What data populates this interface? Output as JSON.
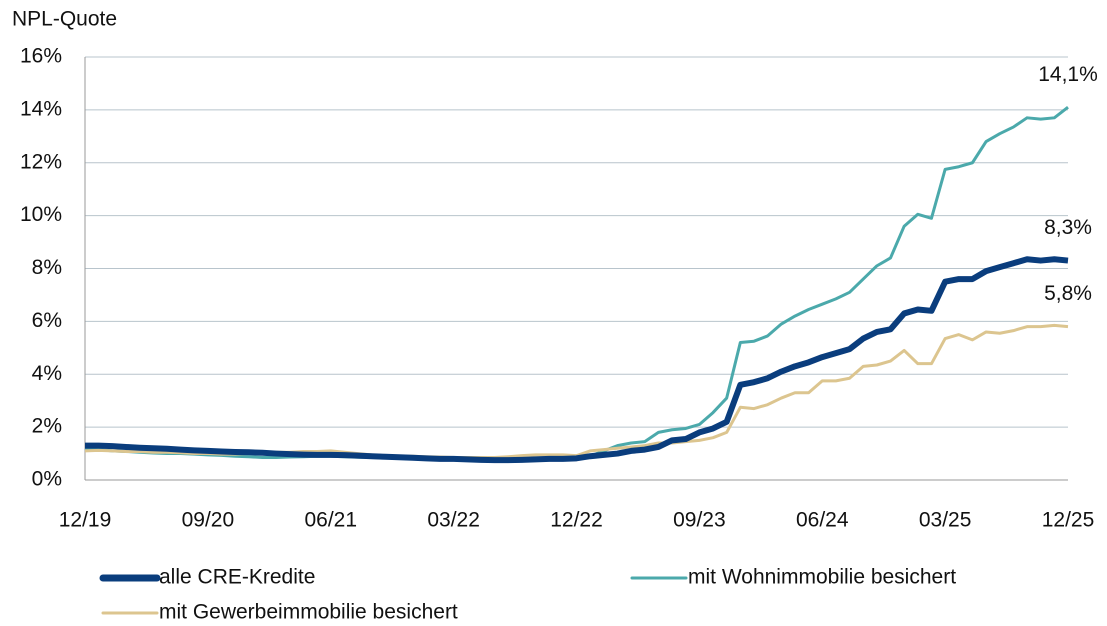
{
  "chart_data": {
    "type": "line",
    "y_axis_title": "NPL-Quote",
    "categories": [
      "12/19",
      null,
      null,
      null,
      null,
      null,
      null,
      null,
      null,
      "09/20",
      null,
      null,
      null,
      null,
      null,
      null,
      null,
      null,
      "06/21",
      null,
      null,
      null,
      null,
      null,
      null,
      null,
      null,
      "03/22",
      null,
      null,
      null,
      null,
      null,
      null,
      null,
      null,
      "12/22",
      null,
      null,
      null,
      null,
      null,
      null,
      null,
      null,
      "09/23",
      null,
      null,
      null,
      null,
      null,
      null,
      null,
      null,
      "06/24",
      null,
      null,
      null,
      null,
      null,
      null,
      null,
      null,
      "03/25",
      null,
      null,
      null,
      null,
      null,
      null,
      null,
      null,
      "12/25"
    ],
    "series": [
      {
        "name": "alle CRE-Kredite",
        "color": "#0a3d7d",
        "width": 6,
        "values": [
          1.3,
          1.3,
          1.28,
          1.25,
          1.22,
          1.2,
          1.18,
          1.15,
          1.12,
          1.1,
          1.08,
          1.06,
          1.05,
          1.03,
          1.0,
          0.98,
          0.96,
          0.95,
          0.95,
          0.94,
          0.92,
          0.9,
          0.88,
          0.86,
          0.84,
          0.82,
          0.8,
          0.8,
          0.78,
          0.76,
          0.75,
          0.75,
          0.76,
          0.78,
          0.8,
          0.8,
          0.82,
          0.9,
          0.95,
          1.0,
          1.1,
          1.15,
          1.25,
          1.5,
          1.55,
          1.8,
          1.95,
          2.2,
          3.6,
          3.7,
          3.85,
          4.1,
          4.3,
          4.45,
          4.65,
          4.8,
          4.95,
          5.35,
          5.6,
          5.7,
          6.3,
          6.45,
          6.4,
          7.5,
          7.6,
          7.6,
          7.9,
          8.05,
          8.2,
          8.35,
          8.3,
          8.35,
          8.3
        ],
        "value_labels": [
          null,
          null,
          null,
          null,
          null,
          null,
          null,
          null,
          null,
          null,
          null,
          null,
          null,
          null,
          null,
          null,
          null,
          null,
          null,
          null,
          null,
          null,
          null,
          null,
          null,
          null,
          null,
          null,
          null,
          null,
          null,
          null,
          null,
          null,
          null,
          null,
          null,
          null,
          null,
          null,
          null,
          null,
          null,
          null,
          null,
          null,
          null,
          null,
          null,
          null,
          null,
          null,
          null,
          null,
          null,
          null,
          null,
          null,
          null,
          null,
          null,
          null,
          null,
          null,
          null,
          null,
          null,
          null,
          null,
          null,
          null,
          null,
          "8,3%"
        ]
      },
      {
        "name": "mit Wohnimmobilie besichert",
        "color": "#4ba9ab",
        "width": 3,
        "values": [
          1.2,
          1.15,
          1.1,
          1.08,
          1.05,
          1.02,
          1.0,
          1.0,
          0.98,
          0.95,
          0.93,
          0.9,
          0.88,
          0.85,
          0.85,
          0.87,
          0.88,
          0.9,
          0.9,
          0.88,
          0.86,
          0.85,
          0.84,
          0.83,
          0.82,
          0.8,
          0.8,
          0.78,
          0.78,
          0.78,
          0.78,
          0.78,
          0.8,
          0.82,
          0.82,
          0.8,
          0.82,
          0.9,
          1.1,
          1.3,
          1.4,
          1.45,
          1.8,
          1.9,
          1.95,
          2.1,
          2.55,
          3.1,
          5.2,
          5.25,
          5.45,
          5.9,
          6.2,
          6.45,
          6.65,
          6.85,
          7.1,
          7.6,
          8.1,
          8.4,
          9.6,
          10.05,
          9.9,
          11.75,
          11.85,
          12.0,
          12.8,
          13.1,
          13.35,
          13.7,
          13.65,
          13.7,
          14.1
        ],
        "value_labels": [
          null,
          null,
          null,
          null,
          null,
          null,
          null,
          null,
          null,
          null,
          null,
          null,
          null,
          null,
          null,
          null,
          null,
          null,
          null,
          null,
          null,
          null,
          null,
          null,
          null,
          null,
          null,
          null,
          null,
          null,
          null,
          null,
          null,
          null,
          null,
          null,
          null,
          null,
          null,
          null,
          null,
          null,
          null,
          null,
          null,
          null,
          null,
          null,
          null,
          null,
          null,
          null,
          null,
          null,
          null,
          null,
          null,
          null,
          null,
          null,
          null,
          null,
          null,
          null,
          null,
          null,
          null,
          null,
          null,
          null,
          null,
          null,
          "14,1%"
        ]
      },
      {
        "name": "mit Gewerbeimmobilie besichert",
        "color": "#dcc58f",
        "width": 3,
        "values": [
          1.1,
          1.12,
          1.1,
          1.08,
          1.08,
          1.05,
          1.05,
          1.03,
          1.0,
          1.0,
          0.98,
          0.98,
          1.0,
          1.05,
          1.05,
          1.05,
          1.08,
          1.08,
          1.1,
          1.05,
          1.0,
          0.95,
          0.92,
          0.9,
          0.9,
          0.88,
          0.87,
          0.85,
          0.85,
          0.85,
          0.85,
          0.88,
          0.92,
          0.95,
          0.95,
          0.95,
          0.92,
          1.1,
          1.15,
          1.2,
          1.25,
          1.3,
          1.4,
          1.4,
          1.45,
          1.5,
          1.6,
          1.8,
          2.75,
          2.7,
          2.85,
          3.1,
          3.3,
          3.3,
          3.75,
          3.75,
          3.85,
          4.3,
          4.35,
          4.5,
          4.9,
          4.4,
          4.4,
          5.35,
          5.5,
          5.3,
          5.6,
          5.55,
          5.65,
          5.8,
          5.8,
          5.85,
          5.8
        ],
        "value_labels": [
          null,
          null,
          null,
          null,
          null,
          null,
          null,
          null,
          null,
          null,
          null,
          null,
          null,
          null,
          null,
          null,
          null,
          null,
          null,
          null,
          null,
          null,
          null,
          null,
          null,
          null,
          null,
          null,
          null,
          null,
          null,
          null,
          null,
          null,
          null,
          null,
          null,
          null,
          null,
          null,
          null,
          null,
          null,
          null,
          null,
          null,
          null,
          null,
          null,
          null,
          null,
          null,
          null,
          null,
          null,
          null,
          null,
          null,
          null,
          null,
          null,
          null,
          null,
          null,
          null,
          null,
          null,
          null,
          null,
          null,
          null,
          null,
          "5,8%"
        ]
      }
    ],
    "ylim": [
      0,
      16
    ],
    "yticks": [
      {
        "value": 0,
        "label": "0%"
      },
      {
        "value": 2,
        "label": "2%"
      },
      {
        "value": 4,
        "label": "4%"
      },
      {
        "value": 6,
        "label": "6%"
      },
      {
        "value": 8,
        "label": "8%"
      },
      {
        "value": 10,
        "label": "10%"
      },
      {
        "value": 12,
        "label": "12%"
      },
      {
        "value": 14,
        "label": "14%"
      },
      {
        "value": 16,
        "label": "16%"
      }
    ],
    "grid": true,
    "legend": "bottom"
  }
}
